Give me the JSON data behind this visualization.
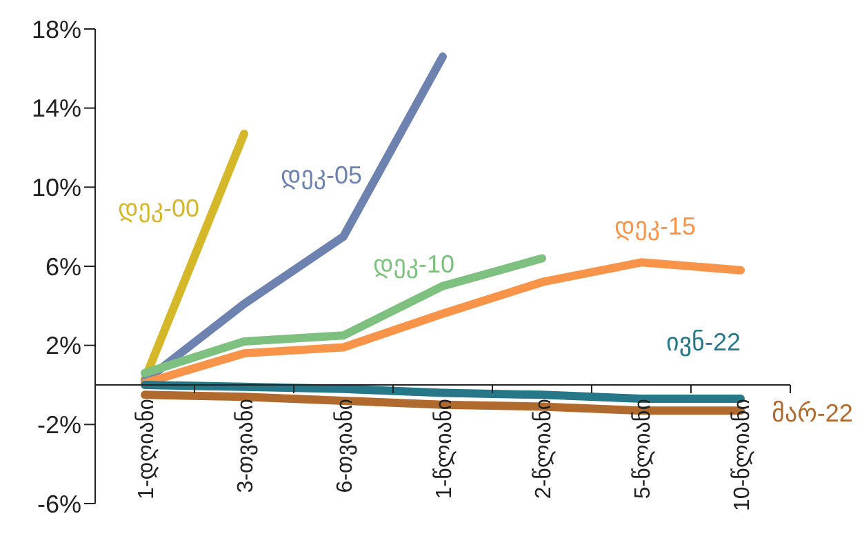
{
  "chart_data": {
    "type": "line",
    "categories": [
      "1-დღიანი",
      "3-თვიანი",
      "6-თვიანი",
      "1-წლიანი",
      "2-წლიანი",
      "5-წლიანი",
      "10-წლიანი"
    ],
    "series": [
      {
        "name": "დეკ-00",
        "color": "#d4b82a",
        "values": [
          0.3,
          12.7,
          null,
          null,
          null,
          null,
          null
        ]
      },
      {
        "name": "დეკ-05",
        "color": "#6e82b0",
        "values": [
          0.2,
          4.1,
          7.5,
          16.6,
          null,
          null,
          null
        ]
      },
      {
        "name": "დეკ-10",
        "color": "#7dc07f",
        "values": [
          0.6,
          2.2,
          2.5,
          5.0,
          6.4,
          null,
          null
        ]
      },
      {
        "name": "დეკ-15",
        "color": "#f7944a",
        "values": [
          0.1,
          1.6,
          1.9,
          3.6,
          5.2,
          6.2,
          5.8
        ]
      },
      {
        "name": "ივნ-22",
        "color": "#267787",
        "values": [
          0.0,
          -0.1,
          -0.2,
          -0.4,
          -0.5,
          -0.7,
          -0.7
        ]
      },
      {
        "name": "მარ-22",
        "color": "#b06a2e",
        "values": [
          -0.5,
          -0.6,
          -0.8,
          -1.0,
          -1.1,
          -1.3,
          -1.3
        ]
      }
    ],
    "ylim": [
      -6,
      18
    ],
    "yticks": [
      {
        "value": -6,
        "label": "-6%"
      },
      {
        "value": -2,
        "label": "-2%"
      },
      {
        "value": 2,
        "label": "2%"
      },
      {
        "value": 6,
        "label": "6%"
      },
      {
        "value": 10,
        "label": "10%"
      },
      {
        "value": 14,
        "label": "14%"
      },
      {
        "value": 18,
        "label": "18%"
      }
    ],
    "marker": "none",
    "line_style": "solid"
  }
}
